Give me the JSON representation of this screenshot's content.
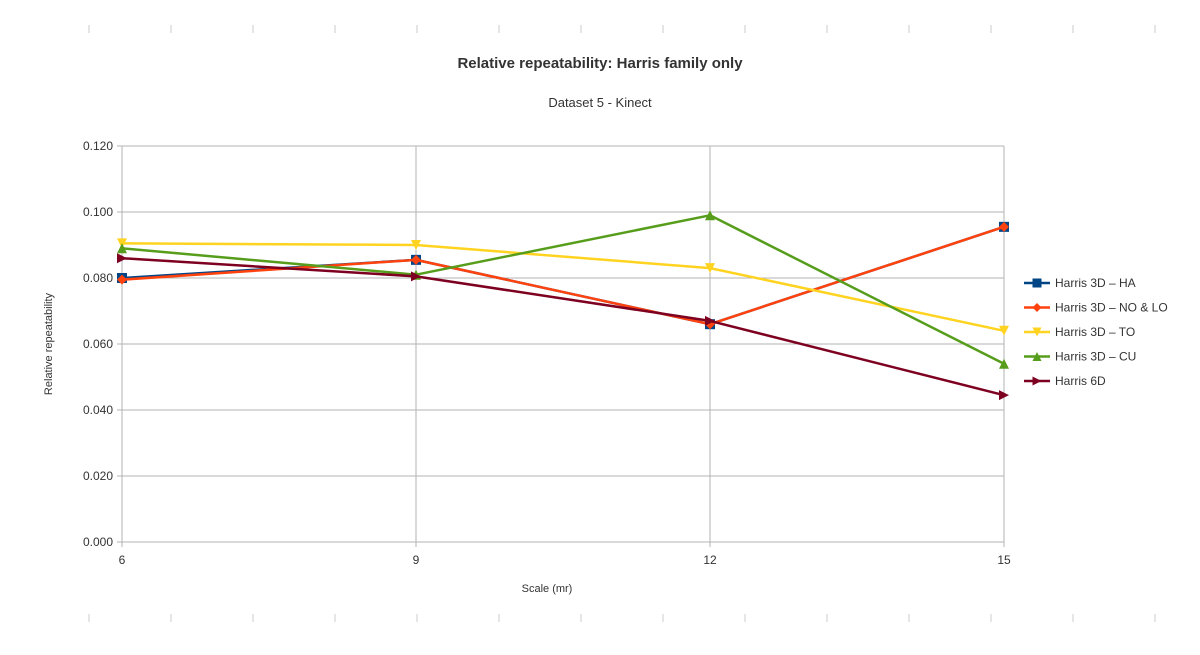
{
  "chart_data": {
    "type": "line",
    "title": "Relative repeatability: Harris family only",
    "subtitle": "Dataset 5 - Kinect",
    "xlabel": "Scale (mr)",
    "ylabel": "Relative repeatability",
    "x": [
      6,
      9,
      12,
      15
    ],
    "x_tick_labels": [
      "6",
      "9",
      "12",
      "15"
    ],
    "ylim": [
      0,
      0.12
    ],
    "y_ticks": [
      0,
      0.02,
      0.04,
      0.06,
      0.08,
      0.1,
      0.12
    ],
    "y_tick_labels": [
      "0.000",
      "0.020",
      "0.040",
      "0.060",
      "0.080",
      "0.100",
      "0.120"
    ],
    "grid": true,
    "legend_position": "right",
    "series": [
      {
        "name": "Harris 3D – HA",
        "color": "#004586",
        "marker": "square",
        "values": [
          0.08,
          0.0855,
          0.066,
          0.0955
        ]
      },
      {
        "name": "Harris 3D – NO & LO",
        "color": "#ff420e",
        "marker": "diamond",
        "values": [
          0.0795,
          0.0855,
          0.066,
          0.0955
        ]
      },
      {
        "name": "Harris 3D – TO",
        "color": "#ffd320",
        "marker": "triangle-down",
        "values": [
          0.0905,
          0.09,
          0.083,
          0.064
        ]
      },
      {
        "name": "Harris 3D – CU",
        "color": "#579d1c",
        "marker": "triangle-up",
        "values": [
          0.089,
          0.081,
          0.099,
          0.054
        ]
      },
      {
        "name": "Harris 6D",
        "color": "#7e0021",
        "marker": "triangle-right",
        "values": [
          0.086,
          0.0805,
          0.067,
          0.0445
        ]
      }
    ]
  }
}
